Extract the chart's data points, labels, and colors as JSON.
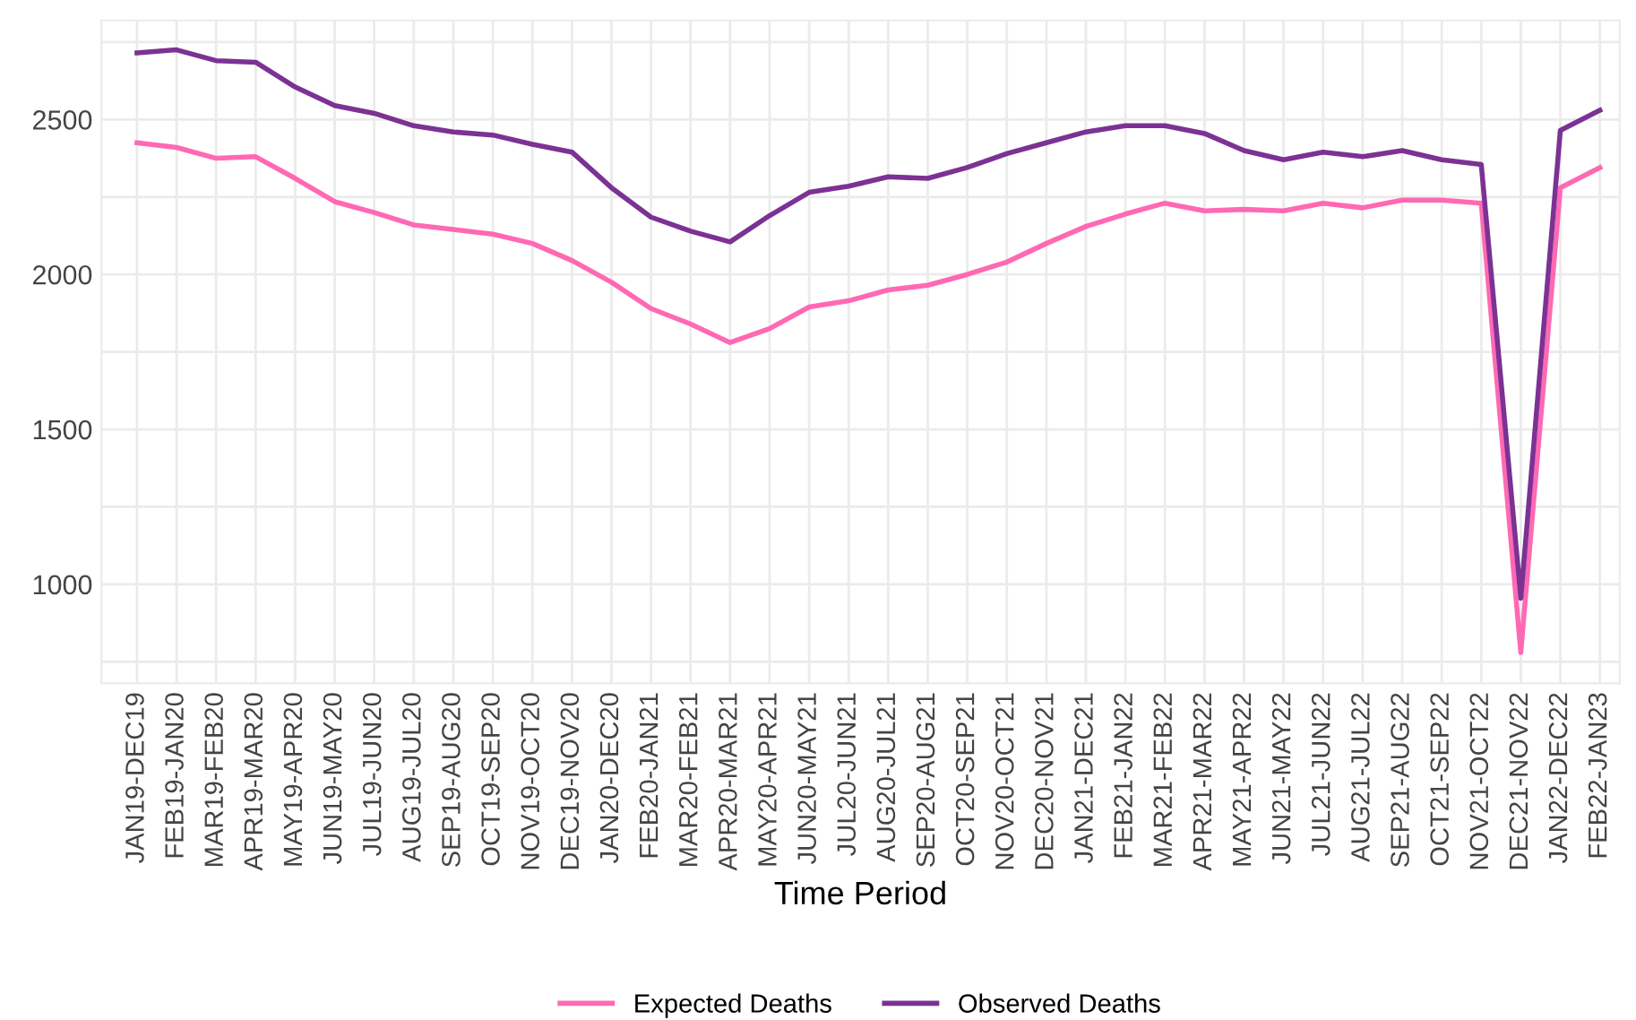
{
  "chart_data": {
    "type": "line",
    "xlabel": "Time Period",
    "categories": [
      "JAN19-DEC19",
      "FEB19-JAN20",
      "MAR19-FEB20",
      "APR19-MAR20",
      "MAY19-APR20",
      "JUN19-MAY20",
      "JUL19-JUN20",
      "AUG19-JUL20",
      "SEP19-AUG20",
      "OCT19-SEP20",
      "NOV19-OCT20",
      "DEC19-NOV20",
      "JAN20-DEC20",
      "FEB20-JAN21",
      "MAR20-FEB21",
      "APR20-MAR21",
      "MAY20-APR21",
      "JUN20-MAY21",
      "JUL20-JUN21",
      "AUG20-JUL21",
      "SEP20-AUG21",
      "OCT20-SEP21",
      "NOV20-OCT21",
      "DEC20-NOV21",
      "JAN21-DEC21",
      "FEB21-JAN22",
      "MAR21-FEB22",
      "APR21-MAR22",
      "MAY21-APR22",
      "JUN21-MAY22",
      "JUL21-JUN22",
      "AUG21-JUL22",
      "SEP21-AUG22",
      "OCT21-SEP22",
      "NOV21-OCT22",
      "DEC21-NOV22",
      "JAN22-DEC22",
      "FEB22-JAN23"
    ],
    "series": [
      {
        "name": "Expected Deaths",
        "color": "#ff69b4",
        "values": [
          2425,
          2410,
          2375,
          2380,
          2310,
          2235,
          2200,
          2160,
          2145,
          2130,
          2100,
          2045,
          1975,
          1890,
          1840,
          1780,
          1825,
          1895,
          1915,
          1950,
          1965,
          2000,
          2040,
          2100,
          2155,
          2195,
          2230,
          2205,
          2210,
          2205,
          2230,
          2215,
          2240,
          2240,
          2230,
          780,
          2280,
          2345
        ]
      },
      {
        "name": "Observed Deaths",
        "color": "#7b3294",
        "values": [
          2715,
          2725,
          2690,
          2685,
          2605,
          2545,
          2520,
          2480,
          2460,
          2450,
          2420,
          2395,
          2280,
          2185,
          2140,
          2105,
          2190,
          2265,
          2285,
          2315,
          2310,
          2345,
          2390,
          2425,
          2460,
          2480,
          2480,
          2455,
          2400,
          2370,
          2395,
          2380,
          2400,
          2370,
          2355,
          955,
          2465,
          2530
        ]
      }
    ],
    "ylim": [
      680,
      2820
    ],
    "yticks": [
      {
        "value": 750,
        "label": null
      },
      1000,
      {
        "value": 1250,
        "label": null
      },
      1500,
      {
        "value": 1750,
        "label": null
      },
      2000,
      {
        "value": 2250,
        "label": null
      },
      2500,
      {
        "value": 2750,
        "label": null
      }
    ],
    "grid": true,
    "legend": "bottom",
    "line_style": "solid",
    "marker": "none"
  }
}
